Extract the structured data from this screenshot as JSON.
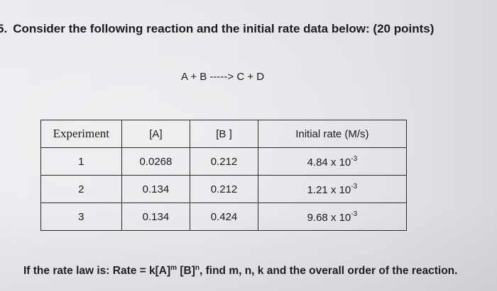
{
  "question": {
    "number": "5.",
    "text": "Consider the following reaction and the initial rate data below: (20 points)"
  },
  "reaction": "A + B -----> C + D",
  "table": {
    "headers": [
      "Experiment",
      "[A]",
      "[B ]",
      "Initial rate (M/s)"
    ],
    "rows": [
      {
        "experiment": "1",
        "a": "0.0268",
        "b": "0.212",
        "rate_mantissa": "4.84 x 10",
        "rate_exp": "-3"
      },
      {
        "experiment": "2",
        "a": "0.134",
        "b": "0.212",
        "rate_mantissa": "1.21 x 10",
        "rate_exp": "-3"
      },
      {
        "experiment": "3",
        "a": "0.134",
        "b": "0.424",
        "rate_mantissa": "9.68 x 10",
        "rate_exp": "-3"
      }
    ]
  },
  "footer": {
    "part1": "If the rate law is: Rate = k[A]",
    "exp_m": "m",
    "part2": " [B]",
    "exp_n": "n",
    "part3": ", find m, n, k and the overall order of the reaction."
  }
}
